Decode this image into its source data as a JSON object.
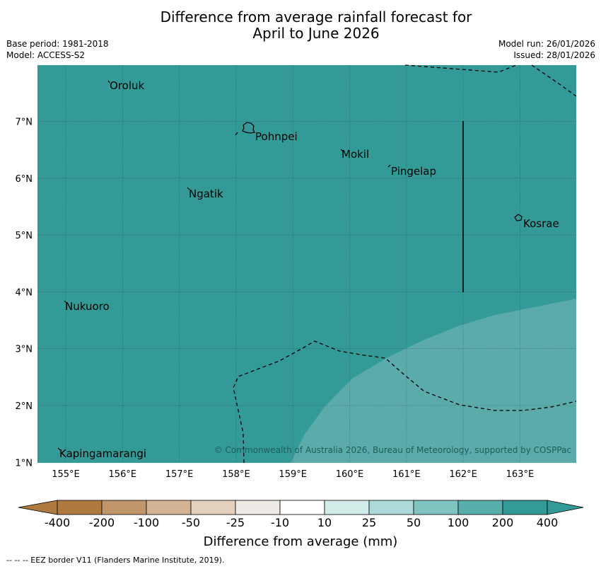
{
  "header": {
    "title_line1": "Difference from average rainfall forecast for",
    "title_line2": "April to June 2026",
    "base_period": "Base period: 1981-2018",
    "model": "Model: ACCESS-S2",
    "model_run": "Model run: 26/01/2026",
    "issued": "Issued: 28/01/2026"
  },
  "map": {
    "lon_labels": [
      "155°E",
      "156°E",
      "157°E",
      "158°E",
      "159°E",
      "160°E",
      "161°E",
      "162°E",
      "163°E"
    ],
    "lat_labels": [
      "7°N",
      "6°N",
      "5°N",
      "4°N",
      "3°N",
      "2°N",
      "1°N"
    ],
    "places": [
      "Oroluk",
      "Pohnpei",
      "Mokil",
      "Pingelap",
      "Ngatik",
      "Kosrae",
      "Nukuoro",
      "Kapingamarangi"
    ],
    "copyright": "© Commonwealth of Australia 2026, Bureau of Meteorology, supported by COSPPac",
    "colors": {
      "main": "#339a98",
      "light": "#5aabaa"
    }
  },
  "colorbar": {
    "tick_labels": [
      "-400",
      "-200",
      "-100",
      "-50",
      "-25",
      "-10",
      "10",
      "25",
      "50",
      "100",
      "200",
      "400"
    ],
    "colors": [
      "#af7a3f",
      "#c0966a",
      "#d4b294",
      "#e5d1bd",
      "#eeebe6",
      "#ffffff",
      "#d2ecea",
      "#abdad8",
      "#80c4c2",
      "#57aeab",
      "#339a98"
    ],
    "title": "Difference from average (mm)"
  },
  "legend": {
    "eez": "--  --  -- EEZ border V11 (Flanders Marine Institute, 2019)."
  }
}
